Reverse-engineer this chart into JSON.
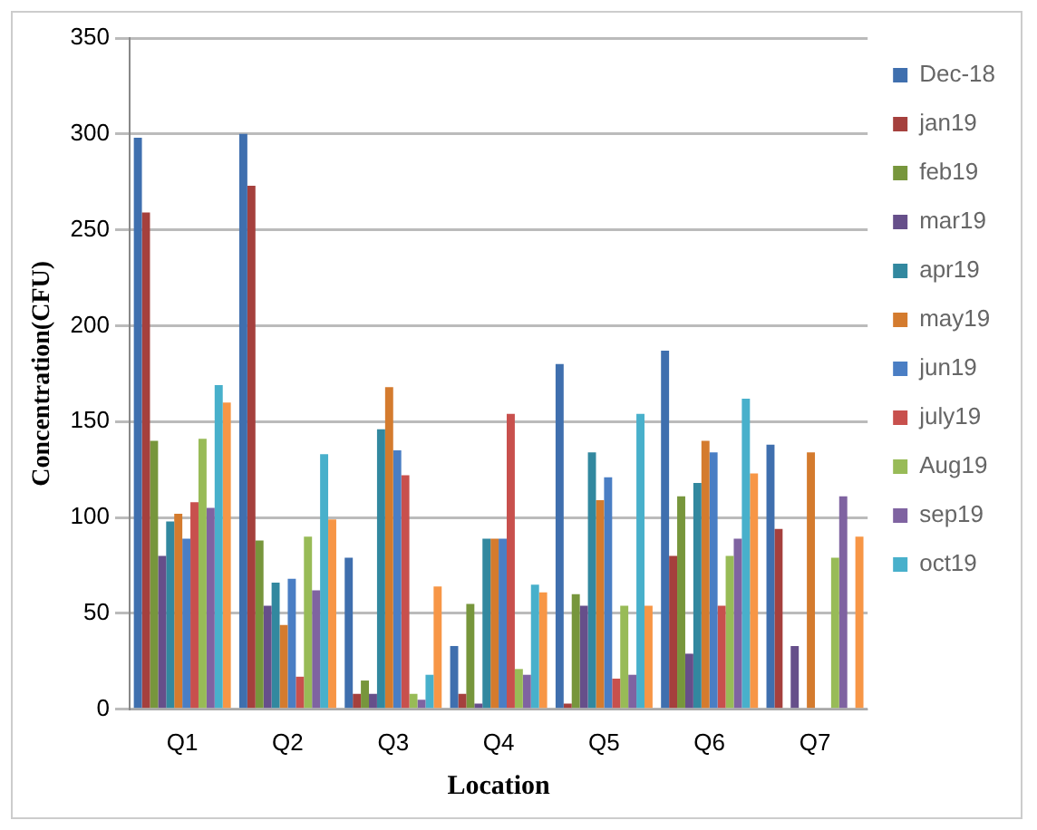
{
  "chart_data": {
    "type": "bar",
    "xlabel": "Location",
    "ylabel": "Concentration(CFU)",
    "categories": [
      "Q1",
      "Q2",
      "Q3",
      "Q4",
      "Q5",
      "Q6",
      "Q7"
    ],
    "ylim": [
      0,
      350
    ],
    "yticks": [
      0,
      50,
      100,
      150,
      200,
      250,
      300,
      350
    ],
    "grid": "y",
    "legend": "right",
    "series": [
      {
        "name": "Dec-18",
        "color": "#3f6fae",
        "values": [
          298,
          300,
          79,
          33,
          180,
          187,
          138
        ]
      },
      {
        "name": "jan19",
        "color": "#a5403d",
        "values": [
          259,
          273,
          8,
          8,
          3,
          80,
          94
        ]
      },
      {
        "name": "feb19",
        "color": "#77963c",
        "values": [
          140,
          88,
          15,
          55,
          60,
          111,
          0
        ]
      },
      {
        "name": "mar19",
        "color": "#664f8a",
        "values": [
          80,
          54,
          8,
          3,
          54,
          29,
          33
        ]
      },
      {
        "name": "apr19",
        "color": "#32889f",
        "values": [
          98,
          66,
          146,
          89,
          134,
          118,
          0
        ]
      },
      {
        "name": "may19",
        "color": "#d47b2e",
        "values": [
          102,
          44,
          168,
          89,
          109,
          140,
          134
        ]
      },
      {
        "name": "jun19",
        "color": "#4a7ec4",
        "values": [
          89,
          68,
          135,
          89,
          121,
          134,
          0
        ]
      },
      {
        "name": "july19",
        "color": "#c8504d",
        "values": [
          108,
          17,
          122,
          154,
          16,
          54,
          0
        ]
      },
      {
        "name": "Aug19",
        "color": "#98bb57",
        "values": [
          141,
          90,
          8,
          21,
          54,
          80,
          79
        ]
      },
      {
        "name": "sep19",
        "color": "#7f63a1",
        "values": [
          105,
          62,
          5,
          18,
          18,
          89,
          111
        ]
      },
      {
        "name": "oct19",
        "color": "#48b0cb",
        "values": [
          169,
          133,
          18,
          65,
          154,
          162,
          0
        ]
      },
      {
        "color": "#f79646",
        "values": [
          160,
          99,
          64,
          61,
          54,
          123,
          90
        ]
      }
    ]
  }
}
